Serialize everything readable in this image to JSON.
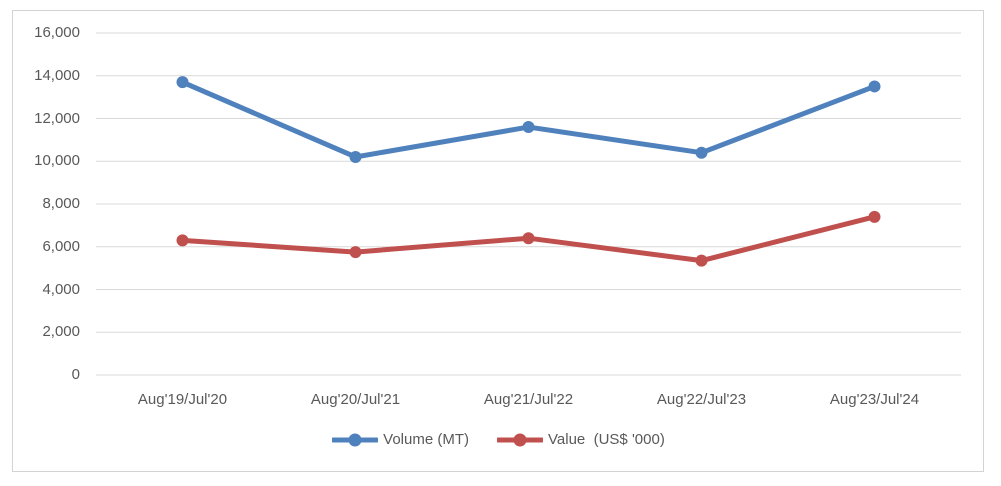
{
  "chart_data": {
    "type": "line",
    "title": "",
    "xlabel": "",
    "ylabel": "",
    "categories": [
      "Aug'19/Jul'20",
      "Aug'20/Jul'21",
      "Aug'21/Jul'22",
      "Aug'22/Jul'23",
      "Aug'23/Jul'24"
    ],
    "series": [
      {
        "name": "Volume (MT)",
        "color": "#4F81BD",
        "values": [
          13700,
          10200,
          11600,
          10400,
          13500
        ]
      },
      {
        "name": "Value  (US$ '000)",
        "color": "#C0504D",
        "values": [
          6300,
          5750,
          6400,
          5350,
          7400
        ]
      }
    ],
    "ylim": [
      0,
      16000
    ],
    "ytick_step": 2000,
    "grid": true,
    "gridline_color": "#D9D9D9",
    "axis_text_color": "#595959",
    "legend_position": "bottom",
    "marker": "circle"
  }
}
